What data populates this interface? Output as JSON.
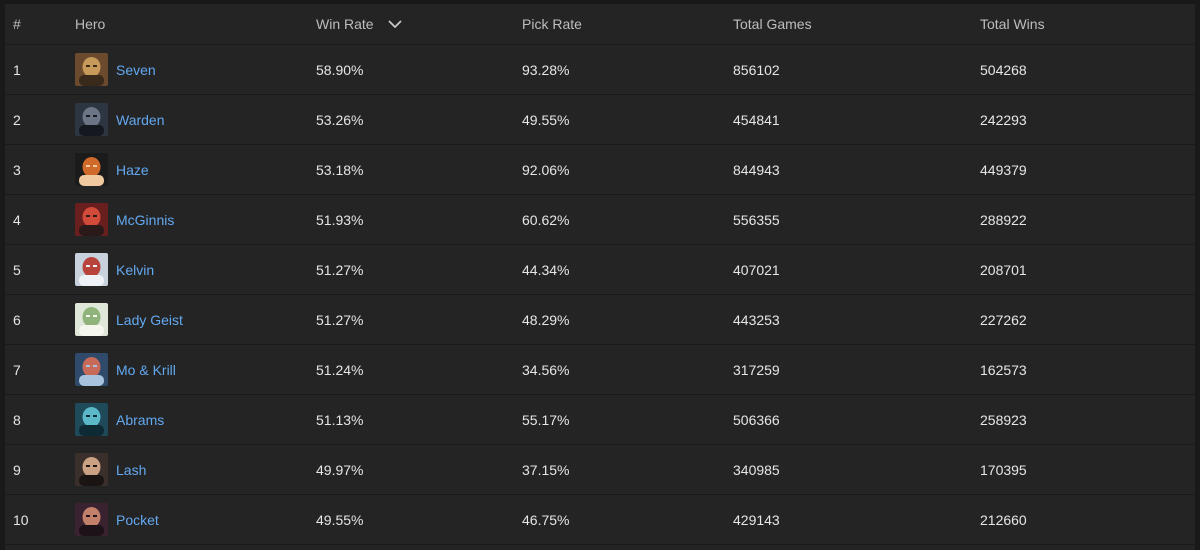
{
  "columns": {
    "rank": "#",
    "hero": "Hero",
    "win_rate": "Win Rate",
    "pick_rate": "Pick Rate",
    "total_games": "Total Games",
    "total_wins": "Total Wins"
  },
  "sort_icon": "chevron-down-icon",
  "rows": [
    {
      "rank": "1",
      "hero": "Seven",
      "win_rate": "58.90%",
      "pick_rate": "93.28%",
      "total_games": "856102",
      "total_wins": "504268",
      "avatar_colors": [
        "#6b4a2e",
        "#c79a5a",
        "#3a2a1c"
      ]
    },
    {
      "rank": "2",
      "hero": "Warden",
      "win_rate": "53.26%",
      "pick_rate": "49.55%",
      "total_games": "454841",
      "total_wins": "242293",
      "avatar_colors": [
        "#2e3542",
        "#6b7585",
        "#15181e"
      ]
    },
    {
      "rank": "3",
      "hero": "Haze",
      "win_rate": "53.18%",
      "pick_rate": "92.06%",
      "total_games": "844943",
      "total_wins": "449379",
      "avatar_colors": [
        "#1b1b1b",
        "#d06a2a",
        "#f0c9a0"
      ]
    },
    {
      "rank": "4",
      "hero": "McGinnis",
      "win_rate": "51.93%",
      "pick_rate": "60.62%",
      "total_games": "556355",
      "total_wins": "288922",
      "avatar_colors": [
        "#6a1f1f",
        "#d24a3a",
        "#2a1a1a"
      ]
    },
    {
      "rank": "5",
      "hero": "Kelvin",
      "win_rate": "51.27%",
      "pick_rate": "44.34%",
      "total_games": "407021",
      "total_wins": "208701",
      "avatar_colors": [
        "#c7d2dd",
        "#b8433c",
        "#eef2f6"
      ]
    },
    {
      "rank": "6",
      "hero": "Lady Geist",
      "win_rate": "51.27%",
      "pick_rate": "48.29%",
      "total_games": "443253",
      "total_wins": "227262",
      "avatar_colors": [
        "#dfe7d8",
        "#8fb37a",
        "#f5f6ee"
      ]
    },
    {
      "rank": "7",
      "hero": "Mo & Krill",
      "win_rate": "51.24%",
      "pick_rate": "34.56%",
      "total_games": "317259",
      "total_wins": "162573",
      "avatar_colors": [
        "#2f4a6a",
        "#c86a5a",
        "#a7c3de"
      ]
    },
    {
      "rank": "8",
      "hero": "Abrams",
      "win_rate": "51.13%",
      "pick_rate": "55.17%",
      "total_games": "506366",
      "total_wins": "258923",
      "avatar_colors": [
        "#1f4a5a",
        "#5ab8c8",
        "#0e2a34"
      ]
    },
    {
      "rank": "9",
      "hero": "Lash",
      "win_rate": "49.97%",
      "pick_rate": "37.15%",
      "total_games": "340985",
      "total_wins": "170395",
      "avatar_colors": [
        "#3a2f2a",
        "#caa283",
        "#1a1512"
      ]
    },
    {
      "rank": "10",
      "hero": "Pocket",
      "win_rate": "49.55%",
      "pick_rate": "46.75%",
      "total_games": "429143",
      "total_wins": "212660",
      "avatar_colors": [
        "#3a2230",
        "#c2806a",
        "#1c1218"
      ]
    }
  ]
}
